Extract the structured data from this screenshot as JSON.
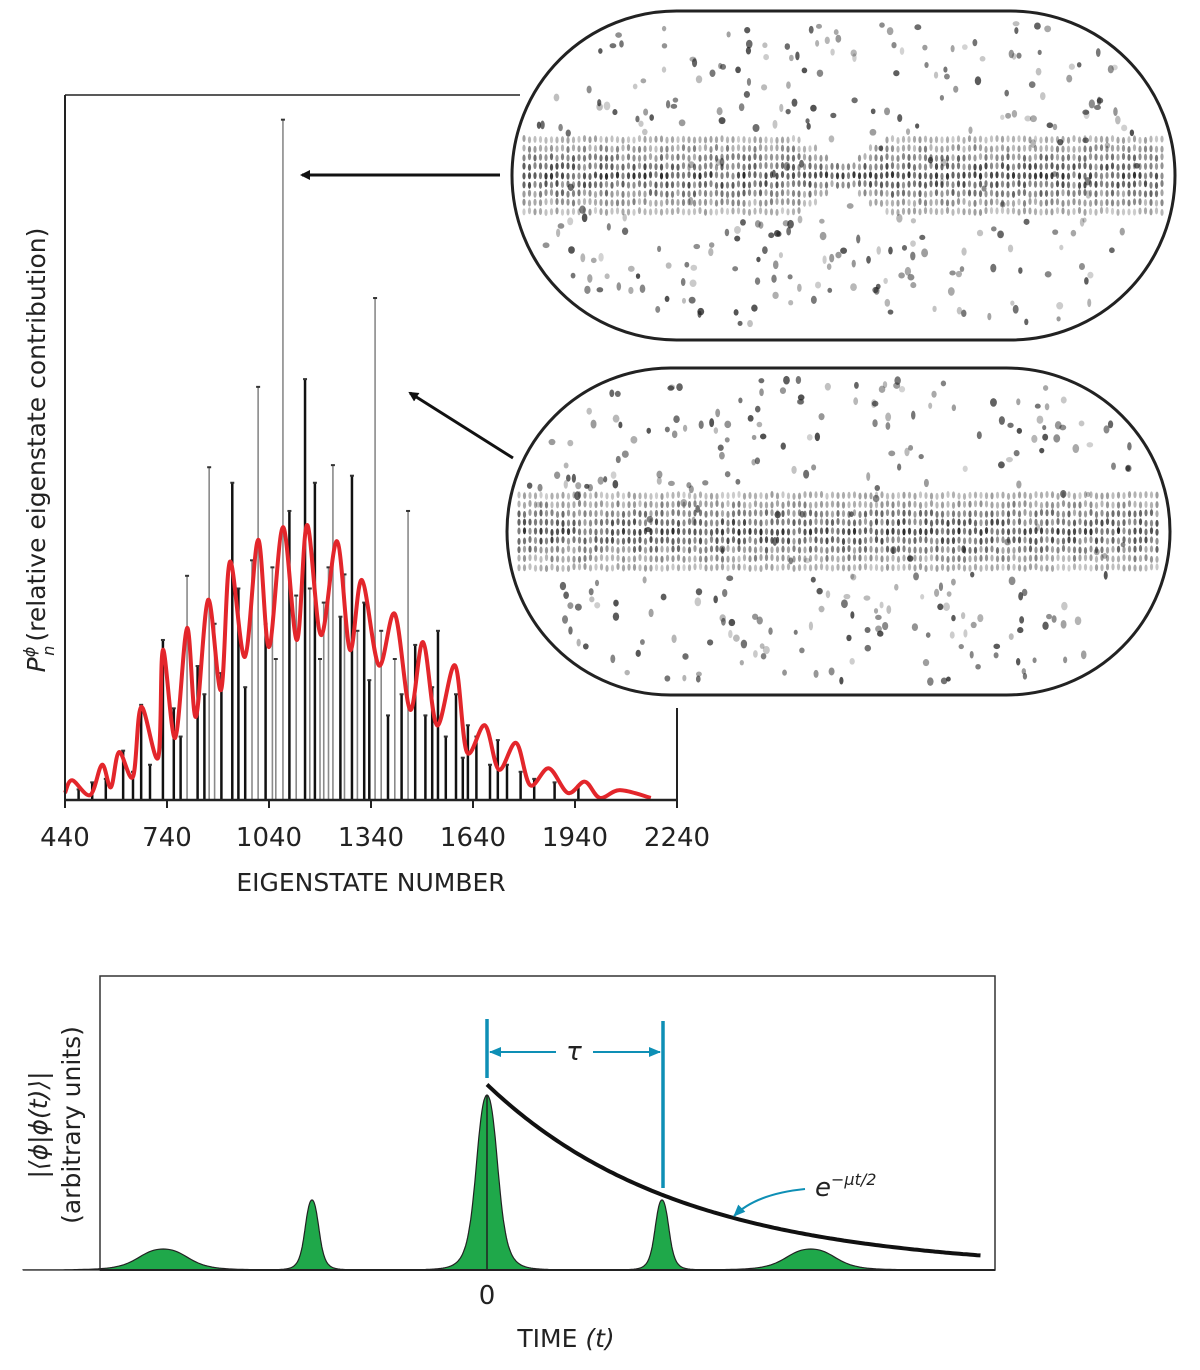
{
  "colors": {
    "smooth_curve": "#e3262b",
    "spikes_dark": "#111111",
    "spikes_light": "#8a8a8a",
    "autocorr_fill": "#1fa84a",
    "annotation": "#0e8fb5"
  },
  "chart_data": [
    {
      "type": "bar",
      "xlabel": "EIGENSTATE NUMBER",
      "ylabel_symbol": "P",
      "ylabel_super": "ϕ",
      "ylabel_sub": "n",
      "ylabel_text": "(relative eigenstate contribution)",
      "xlim": [
        440,
        2240
      ],
      "ylim": [
        0,
        100
      ],
      "x_ticks": [
        "440",
        "740",
        "1040",
        "1340",
        "1640",
        "1940",
        "2240"
      ],
      "grid": false,
      "spikes": [
        [
          664,
          13.5
        ],
        [
          728,
          22.7
        ],
        [
          799,
          31.8
        ],
        [
          864,
          47.2
        ],
        [
          932,
          45
        ],
        [
          1008,
          58.6
        ],
        [
          1081,
          96.5
        ],
        [
          1146,
          59.7
        ],
        [
          1228,
          47.5
        ],
        [
          1201,
          28
        ],
        [
          1284,
          46
        ],
        [
          1352,
          71.2
        ],
        [
          1449,
          41
        ],
        [
          1537,
          24
        ],
        [
          1625,
          10.6
        ],
        [
          1713,
          8.5
        ],
        [
          611,
          7
        ],
        [
          640,
          4
        ],
        [
          690,
          5
        ],
        [
          760,
          13
        ],
        [
          780,
          9
        ],
        [
          830,
          19
        ],
        [
          850,
          15
        ],
        [
          880,
          25
        ],
        [
          900,
          18
        ],
        [
          950,
          30
        ],
        [
          970,
          16
        ],
        [
          990,
          34
        ],
        [
          1030,
          25
        ],
        [
          1050,
          33
        ],
        [
          1060,
          20
        ],
        [
          1100,
          41
        ],
        [
          1120,
          29
        ],
        [
          1160,
          30
        ],
        [
          1175,
          45
        ],
        [
          1190,
          20
        ],
        [
          1215,
          33
        ],
        [
          1250,
          26
        ],
        [
          1262,
          32
        ],
        [
          1300,
          24
        ],
        [
          1320,
          28
        ],
        [
          1335,
          17
        ],
        [
          1370,
          24
        ],
        [
          1390,
          12
        ],
        [
          1410,
          20
        ],
        [
          1430,
          15
        ],
        [
          1470,
          22
        ],
        [
          1500,
          12
        ],
        [
          1520,
          16
        ],
        [
          1560,
          9
        ],
        [
          1590,
          15
        ],
        [
          1610,
          6
        ],
        [
          1650,
          9
        ],
        [
          1690,
          5
        ],
        [
          1740,
          5
        ],
        [
          1780,
          4
        ],
        [
          1820,
          3
        ],
        [
          1880,
          2.5
        ],
        [
          1950,
          2
        ],
        [
          560,
          3
        ],
        [
          520,
          2.5
        ],
        [
          480,
          1.5
        ]
      ],
      "smooth_curve": [
        [
          440,
          1
        ],
        [
          461,
          2.8
        ],
        [
          514,
          0.7
        ],
        [
          549,
          5
        ],
        [
          575,
          1.8
        ],
        [
          599,
          6.8
        ],
        [
          640,
          3.3
        ],
        [
          664,
          13.2
        ],
        [
          714,
          6
        ],
        [
          728,
          21.3
        ],
        [
          764,
          8.8
        ],
        [
          799,
          24.4
        ],
        [
          825,
          11.8
        ],
        [
          861,
          28.4
        ],
        [
          899,
          15.6
        ],
        [
          925,
          33.8
        ],
        [
          969,
          20.3
        ],
        [
          1008,
          36.9
        ],
        [
          1040,
          21.7
        ],
        [
          1081,
          38.7
        ],
        [
          1122,
          22.7
        ],
        [
          1152,
          39
        ],
        [
          1193,
          23.4
        ],
        [
          1240,
          36.7
        ],
        [
          1278,
          21.3
        ],
        [
          1313,
          31.2
        ],
        [
          1363,
          19.1
        ],
        [
          1410,
          26.4
        ],
        [
          1455,
          12.8
        ],
        [
          1493,
          22.4
        ],
        [
          1534,
          10.6
        ],
        [
          1587,
          19.1
        ],
        [
          1622,
          6.8
        ],
        [
          1675,
          10.6
        ],
        [
          1716,
          4.3
        ],
        [
          1767,
          8.1
        ],
        [
          1808,
          2.1
        ],
        [
          1863,
          4.5
        ],
        [
          1919,
          1
        ],
        [
          1969,
          2.6
        ],
        [
          2013,
          0.3
        ],
        [
          2072,
          1.4
        ],
        [
          2163,
          0.3
        ]
      ]
    },
    {
      "type": "area",
      "xlabel": "TIME",
      "xlabel_var": "(t)",
      "ylabel_line1": "|⟨ϕ|ϕ(t)⟩|",
      "ylabel_line2": "(arbitrary units)",
      "x_ticks": [
        "0"
      ],
      "x_unit": "τ",
      "xlim": [
        -2.2,
        2.9
      ],
      "peaks": [
        {
          "t": -1.85,
          "height": 0.12,
          "width": 0.16
        },
        {
          "t": -1,
          "height": 0.4,
          "width": 0.045
        },
        {
          "t": 0,
          "height": 1,
          "width": 0.07
        },
        {
          "t": 1,
          "height": 0.4,
          "width": 0.045
        },
        {
          "t": 1.85,
          "height": 0.12,
          "width": 0.16
        }
      ],
      "envelope": {
        "label_base": "e",
        "label_exp": "−μt/2",
        "amplitude": 1.06,
        "value_at_tau": 0.43
      },
      "period_label": "τ"
    }
  ],
  "insets": [
    {
      "name": "eigenstate-image-top",
      "points_to_n": 1081
    },
    {
      "name": "eigenstate-image-bottom",
      "points_to_n": 1352
    }
  ]
}
